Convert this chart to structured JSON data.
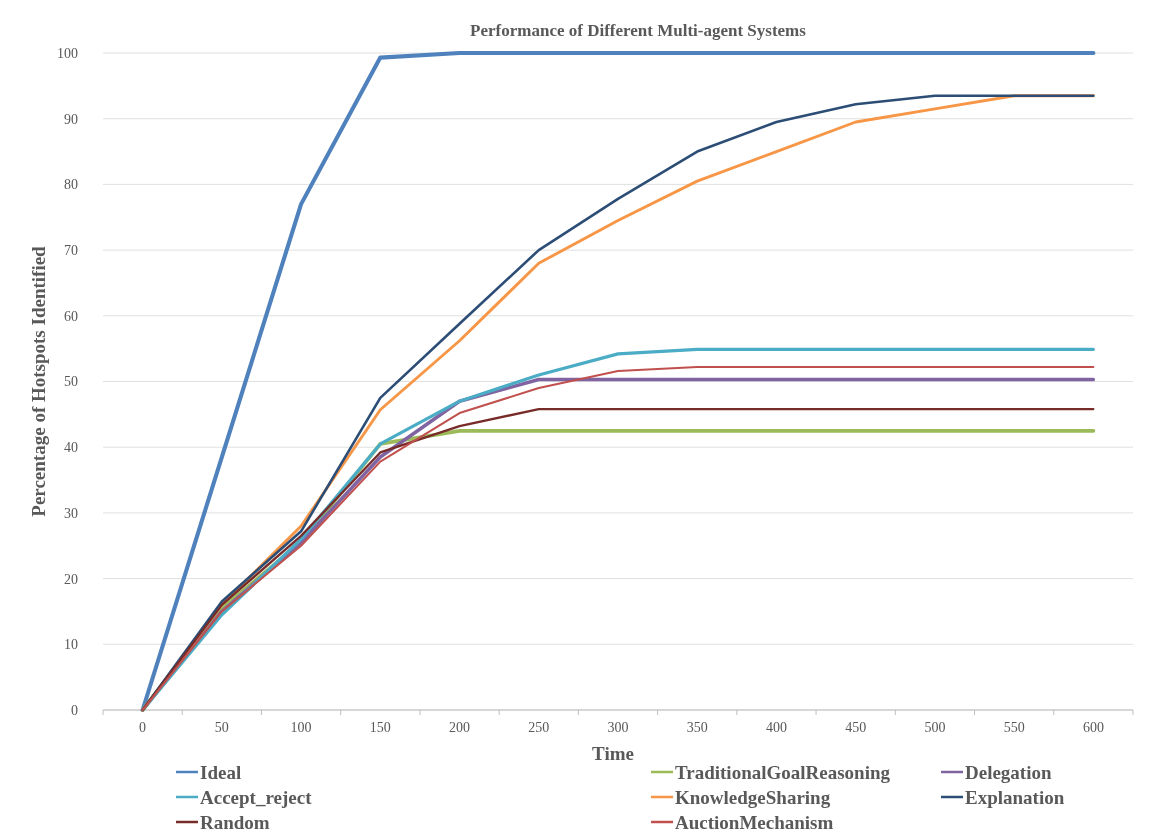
{
  "chart_data": {
    "type": "line",
    "title": "Performance of Different Multi-agent Systems",
    "xlabel": "Time",
    "ylabel": "Percentage of Hotspots Identified",
    "categories": [
      "0",
      "50",
      "100",
      "150",
      "200",
      "250",
      "300",
      "350",
      "400",
      "450",
      "500",
      "550",
      "600"
    ],
    "ylim": [
      0,
      100
    ],
    "yticks": [
      0,
      10,
      20,
      30,
      40,
      50,
      60,
      70,
      80,
      90,
      100
    ],
    "grid": "y",
    "legend": "bottom",
    "marker": "none",
    "line_style": "solid",
    "series": [
      {
        "name": "Ideal",
        "color": "#4f81bd",
        "values": [
          0,
          38.5,
          77,
          99.3,
          100,
          100,
          100,
          100,
          100,
          100,
          100,
          100,
          100
        ]
      },
      {
        "name": "TraditionalGoalReasoning",
        "color": "#9bbb59",
        "values": [
          0,
          15.5,
          25.5,
          40.5,
          42.5,
          42.5,
          42.5,
          42.5,
          42.5,
          42.5,
          42.5,
          42.5,
          42.5
        ]
      },
      {
        "name": "Delegation",
        "color": "#8064a2",
        "values": [
          0,
          15,
          25.5,
          38.5,
          47,
          50.3,
          50.3,
          50.3,
          50.3,
          50.3,
          50.3,
          50.3,
          50.3
        ]
      },
      {
        "name": "Accept_reject",
        "color": "#4bacc6",
        "values": [
          0,
          14.5,
          26,
          40.5,
          47,
          51,
          54.2,
          54.9,
          54.9,
          54.9,
          54.9,
          54.9,
          54.9
        ]
      },
      {
        "name": "KnowledgeSharing",
        "color": "#f79646",
        "values": [
          0,
          16,
          28,
          45.7,
          56.2,
          68,
          74.5,
          80.5,
          85,
          89.5,
          91.5,
          93.5,
          93.5
        ]
      },
      {
        "name": "Explanation",
        "color": "#2c4d75",
        "values": [
          0,
          16.5,
          27.2,
          47.5,
          58.8,
          70,
          77.8,
          85,
          89.5,
          92.2,
          93.5,
          93.5,
          93.5
        ]
      },
      {
        "name": "Random",
        "color": "#772c2a",
        "values": [
          0,
          16,
          26.5,
          39.2,
          43.2,
          45.8,
          45.8,
          45.8,
          45.8,
          45.8,
          45.8,
          45.8,
          45.8
        ]
      },
      {
        "name": "AuctionMechanism",
        "color": "#c0504d",
        "values": [
          0,
          15,
          25,
          37.8,
          45.2,
          49,
          51.6,
          52.2,
          52.2,
          52.2,
          52.2,
          52.2,
          52.2
        ]
      }
    ]
  }
}
